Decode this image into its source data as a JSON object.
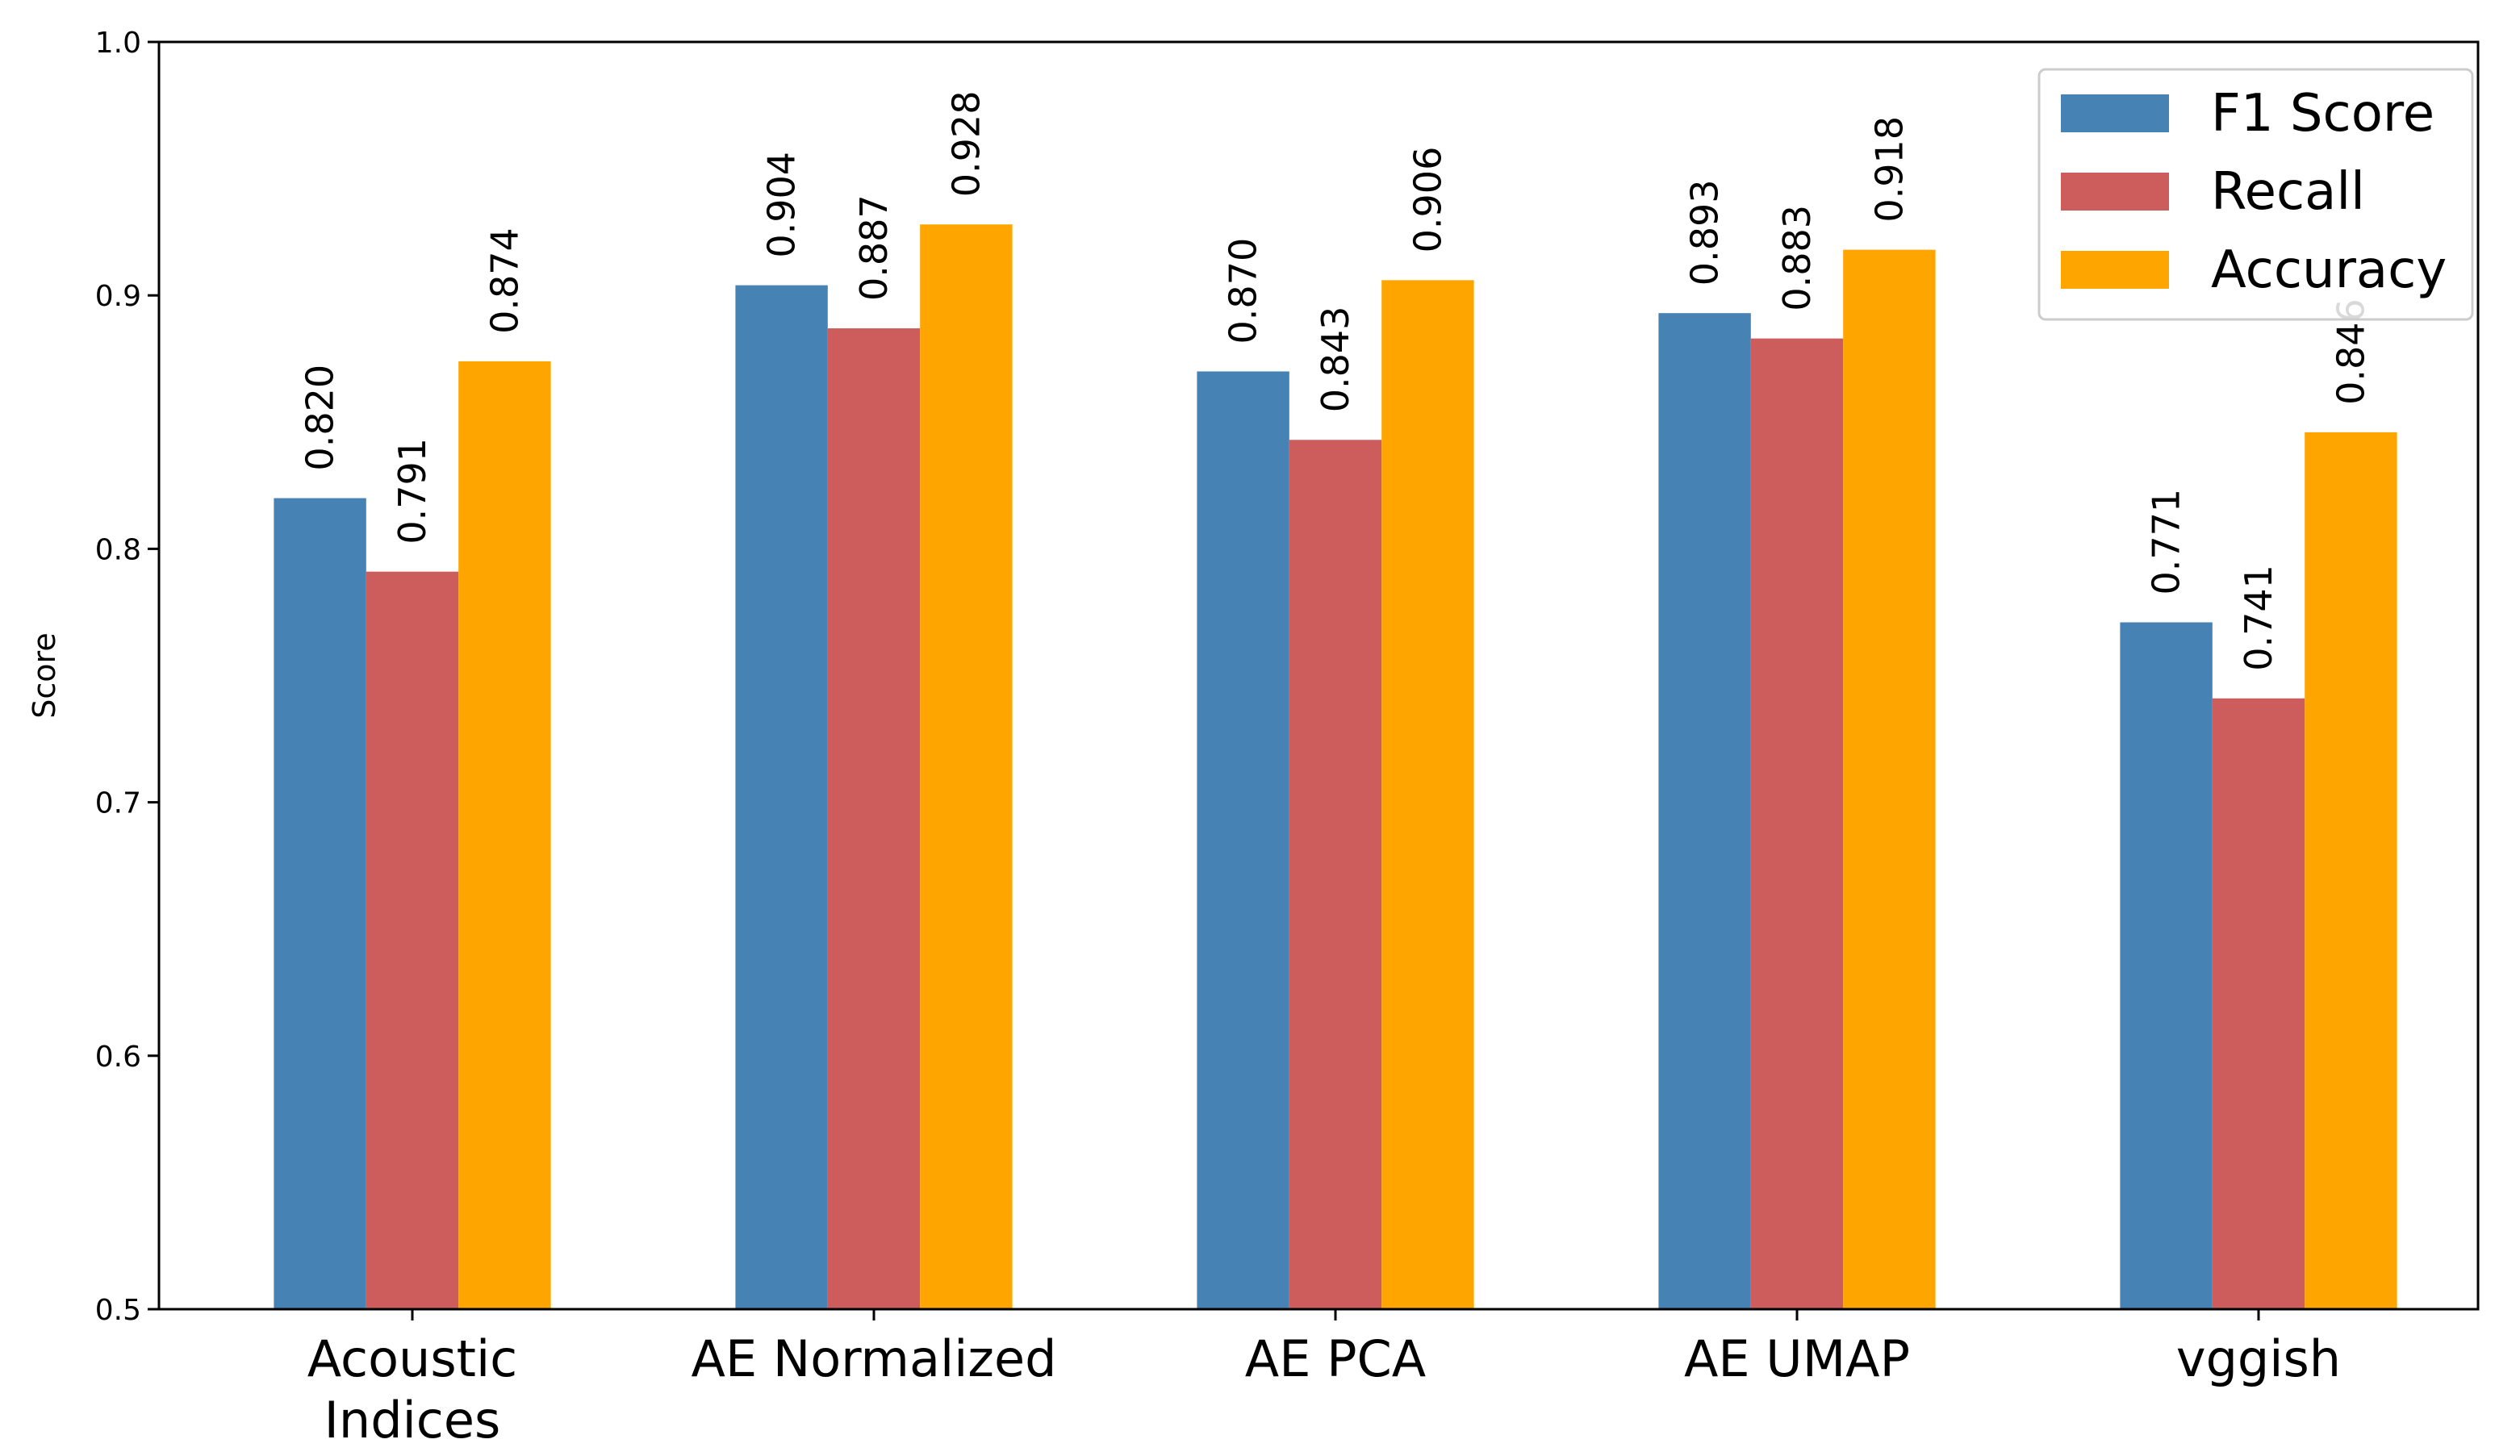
{
  "chart_data": {
    "type": "bar",
    "title": "",
    "xlabel": "",
    "ylabel": "Score",
    "ylim": [
      0.5,
      1.0
    ],
    "yticks": [
      "0.5",
      "0.6",
      "0.7",
      "0.8",
      "0.9",
      "1.0"
    ],
    "categories": [
      [
        "Acoustic",
        "Indices"
      ],
      [
        "AE Normalized"
      ],
      [
        "AE PCA"
      ],
      [
        "AE UMAP"
      ],
      [
        "vggish"
      ]
    ],
    "series": [
      {
        "name": "F1 Score",
        "color": "#4682b4",
        "values": [
          0.82,
          0.904,
          0.87,
          0.893,
          0.771
        ]
      },
      {
        "name": "Recall",
        "color": "#cd5c5c",
        "values": [
          0.791,
          0.887,
          0.843,
          0.883,
          0.741
        ]
      },
      {
        "name": "Accuracy",
        "color": "#ffa500",
        "values": [
          0.874,
          0.928,
          0.906,
          0.918,
          0.846
        ]
      }
    ],
    "value_labels": [
      [
        "0.820",
        "0.904",
        "0.870",
        "0.893",
        "0.771"
      ],
      [
        "0.791",
        "0.887",
        "0.843",
        "0.883",
        "0.741"
      ],
      [
        "0.874",
        "0.928",
        "0.906",
        "0.918",
        "0.846"
      ]
    ],
    "legend": "top-right",
    "grid": false
  }
}
